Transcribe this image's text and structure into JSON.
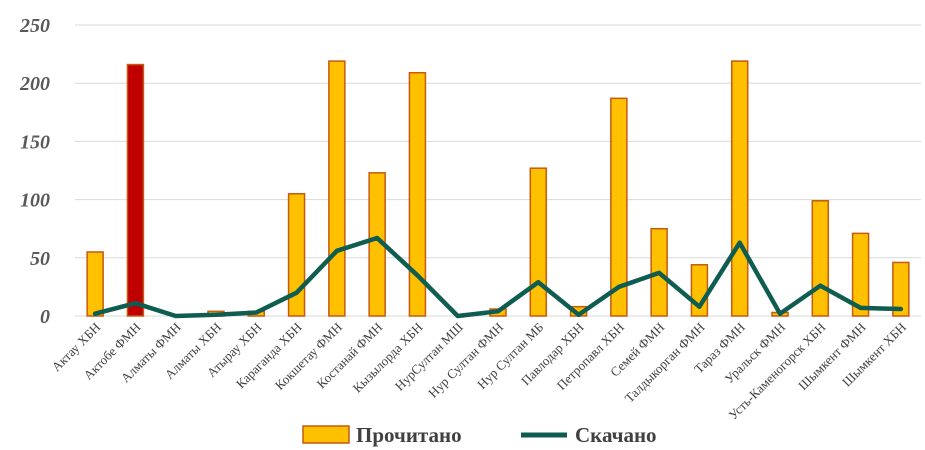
{
  "chart_data": {
    "type": "bar",
    "title": "",
    "xlabel": "",
    "ylabel": "",
    "ylim": [
      0,
      250
    ],
    "yticks": [
      0,
      50,
      100,
      150,
      200,
      250
    ],
    "grid": true,
    "legend_position": "bottom",
    "categories": [
      "Актау ХБН",
      "Актобе ФМН",
      "Алматы ФМН",
      "Алматы ХБН",
      "Атырау ХБН",
      "Караганда ХБН",
      "Кокшетау ФМН",
      "Костанай ФМН",
      "Кызылорда ХБН",
      "НурСултан МШ",
      "Нур Султан ФМН",
      "Нур Султан МБ",
      "Павлодар ХБН",
      "Петропавл ХБН",
      "Семей ФМН",
      "Талдыкорган ФМН",
      "Тараз ФМН",
      "Уральск ФМН",
      "Усть-Каменогорск ХБН",
      "Шымкент ФМН",
      "Шымкент ХБН"
    ],
    "series": [
      {
        "name": "Прочитано",
        "type": "bar",
        "color": "#FFC000",
        "border_color": "#C55A11",
        "highlight_color": "#C00000",
        "highlight_index": 1,
        "values": [
          55,
          216,
          0,
          4,
          4,
          105,
          219,
          123,
          209,
          0,
          6,
          127,
          8,
          187,
          75,
          44,
          219,
          3,
          99,
          71,
          46
        ]
      },
      {
        "name": "Скачано",
        "type": "line",
        "color": "#0F5D50",
        "values": [
          2,
          11,
          0,
          1,
          3,
          20,
          56,
          67,
          35,
          0,
          4,
          29,
          1,
          25,
          37,
          8,
          63,
          2,
          26,
          7,
          6
        ]
      }
    ]
  }
}
